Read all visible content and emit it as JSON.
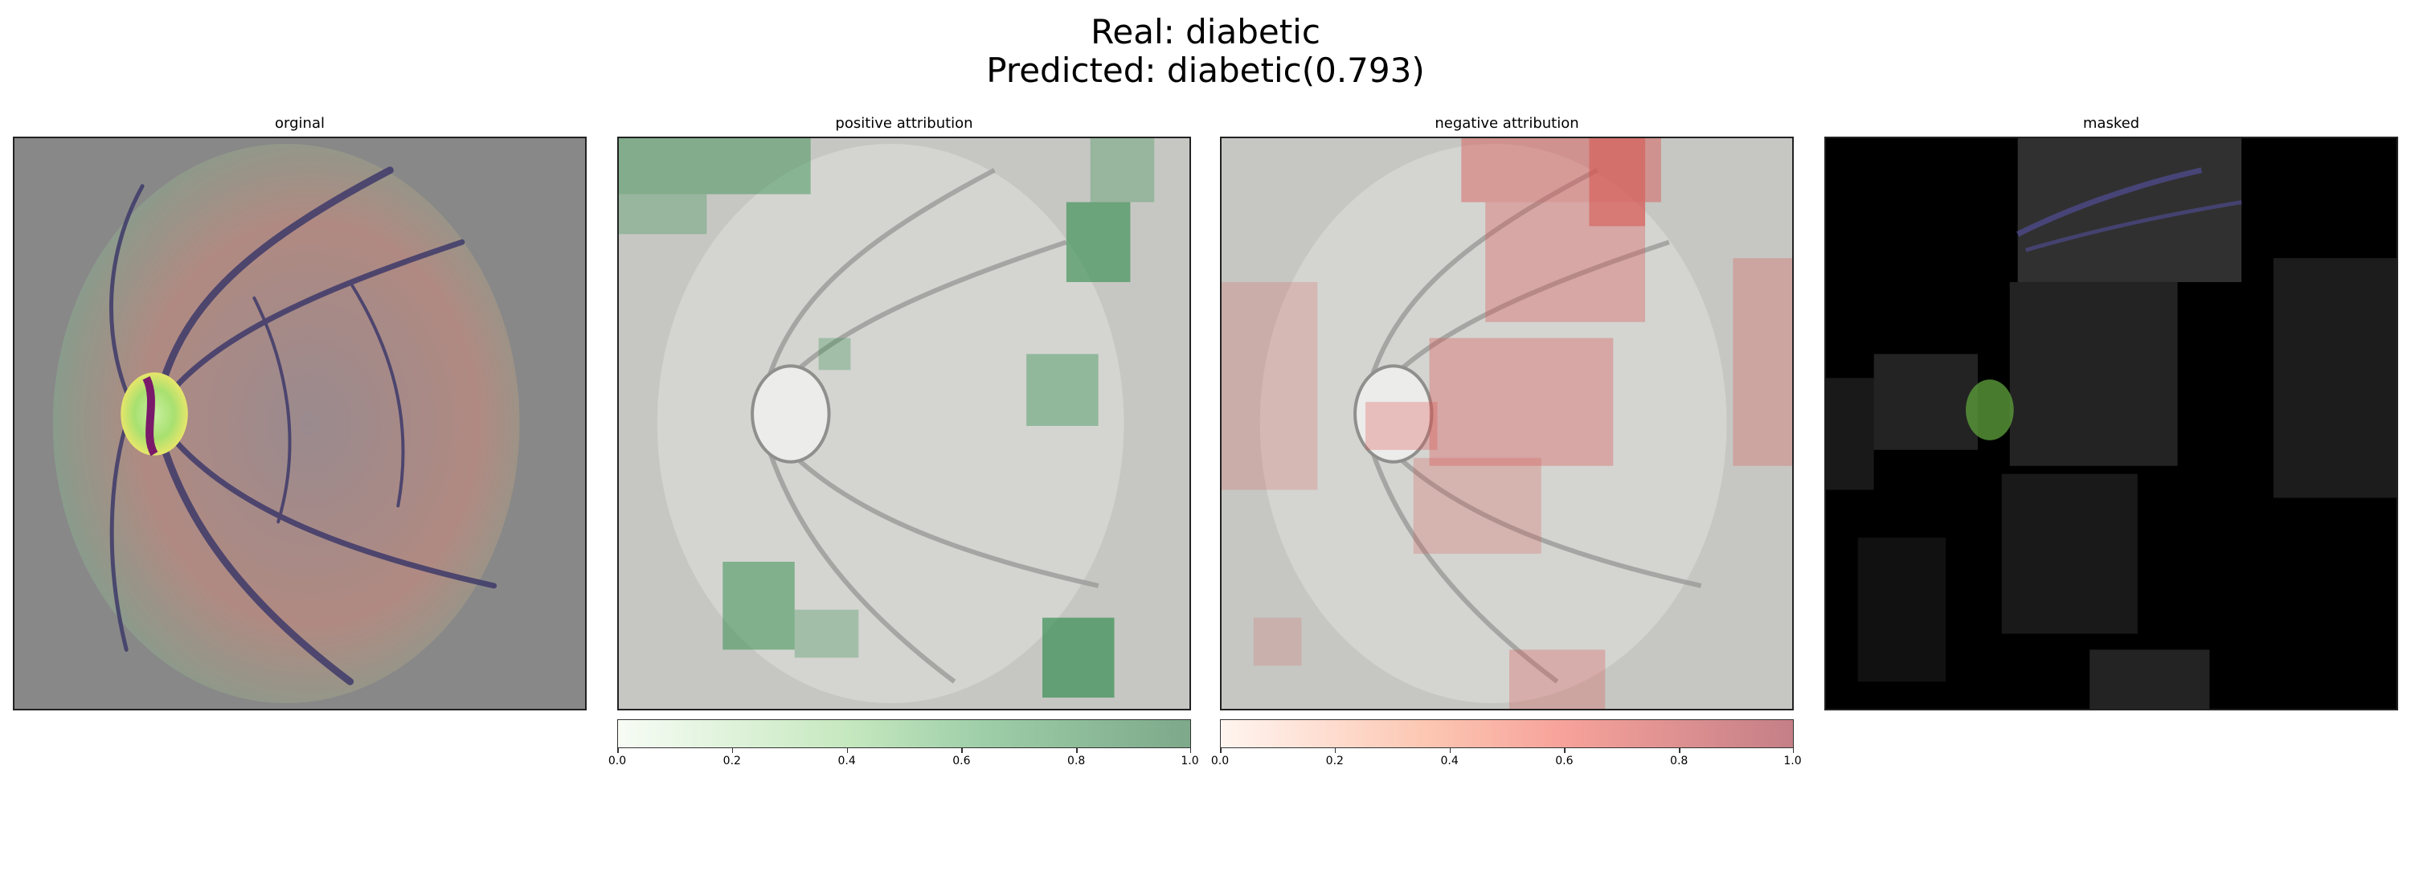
{
  "figure": {
    "title_real": "Real: diabetic",
    "title_predicted": "Predicted: diabetic(0.793)"
  },
  "panels": [
    {
      "id": "original",
      "title": "orginal"
    },
    {
      "id": "positive",
      "title": "positive attribution"
    },
    {
      "id": "negative",
      "title": "negative attribution"
    },
    {
      "id": "masked",
      "title": "masked"
    }
  ],
  "colorbars": {
    "positive": {
      "min": 0.0,
      "max": 1.0,
      "ticks": [
        "0.0",
        "0.2",
        "0.4",
        "0.6",
        "0.8",
        "1.0"
      ],
      "low_color": "#f7fcf5",
      "high_color": "#7da98a"
    },
    "negative": {
      "min": 0.0,
      "max": 1.0,
      "ticks": [
        "0.0",
        "0.2",
        "0.4",
        "0.6",
        "0.8",
        "1.0"
      ],
      "low_color": "#fff5f0",
      "high_color": "#c47f87"
    }
  },
  "colors": {
    "background_gray": "#888888",
    "attribution_bg": "#c6c7c3",
    "masked_bg": "#000000"
  }
}
